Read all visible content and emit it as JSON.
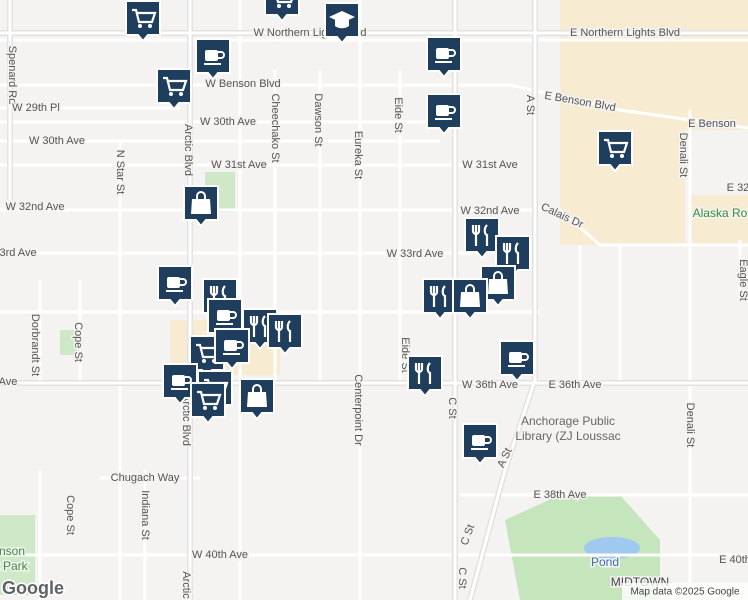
{
  "streets": [
    "W Northern Lights Blvd",
    "E Northern Lights Blvd",
    "Spenard Rd",
    "W Benson Blvd",
    "E Benson Blvd",
    "E Benson",
    "W 29th Pl",
    "W 30th Ave",
    "W 30th Ave",
    "W 31st Ave",
    "W 31st Ave",
    "W 32nd Ave",
    "W 32nd Ave",
    "Calais Dr",
    "E 32",
    "W 33rd Ave",
    "3rd Ave",
    "W 36th Ave",
    "E 36th Ave",
    "Ave",
    "Chugach Way",
    "E 38th Ave",
    "W 40th Ave",
    "E 40th",
    "Cheechako St",
    "Dawson St",
    "Eureka St",
    "Eide St",
    "A St",
    "Denali St",
    "Eagle St",
    "N Star St",
    "Arctic Blvd",
    "Dorbrandt St",
    "Cope St",
    "Cope St",
    "Indiana St",
    "Centerpoint Dr",
    "Eide St",
    "C St",
    "A St",
    "C St",
    "C St",
    "Arctic",
    "Denali St",
    "Arctic Blvd"
  ],
  "places": [
    "Alaska Ro",
    "Anchorage Public",
    "Library (ZJ Loussac",
    "Pond",
    "MIDTOWN",
    "nson",
    "t Park"
  ],
  "logo": "Google",
  "attribution": "Map data ©2025 Google"
}
